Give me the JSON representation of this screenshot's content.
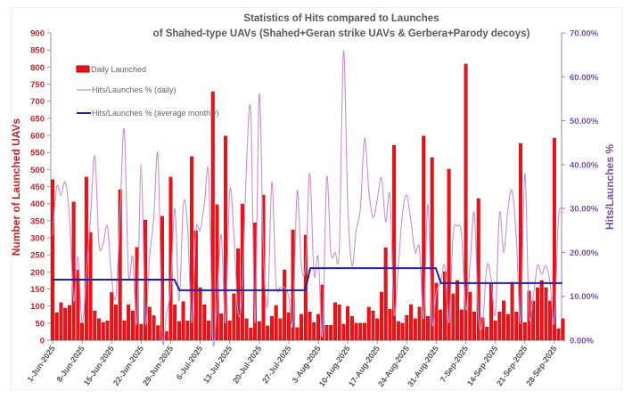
{
  "chart_data": {
    "type": "bar",
    "title": [
      "Statistics of Hits compared to Launches",
      "of Shahed-type UAVs (Shahed+Geran strike UAVs & Gerbera+Parody decoys)"
    ],
    "ylabel": "Number of Launched UAVs",
    "ylabel_right": "Hits/Launches %",
    "ylim": [
      0,
      900
    ],
    "ylim_right": [
      0,
      70
    ],
    "y_ticks": [
      "0",
      "50",
      "100",
      "150",
      "200",
      "250",
      "300",
      "350",
      "400",
      "450",
      "500",
      "550",
      "600",
      "650",
      "700",
      "750",
      "800",
      "850",
      "900"
    ],
    "y_ticks_right": [
      "0.00%",
      "10.00%",
      "20.00%",
      "30.00%",
      "40.00%",
      "50.00%",
      "60.00%",
      "70.00%"
    ],
    "x_start": "1-Jun-2025",
    "x_ticks": [
      "1-Jun-2025",
      "8-Jun-2025",
      "15-Jun-2025",
      "22-Jun-2025",
      "29-Jun-2025",
      "6-Jul-2025",
      "13-Jul-2025",
      "20-Jul-2025",
      "27-Jul-2025",
      "3-Aug-2025",
      "10-Aug-2025",
      "17-Aug-2025",
      "24-Aug-2025",
      "31-Aug-2025",
      "7-Sep-2025",
      "14-Sep-2025",
      "21-Sep-2025",
      "28-Sep-2025"
    ],
    "legend": [
      "Daily Launched",
      "Hits/Launches % (daily)",
      "Hits/Launches % (average monthly)"
    ],
    "legend_position": "top-left",
    "series": [
      {
        "name": "Daily Launched",
        "type": "bar",
        "axis": "left",
        "values": [
          470,
          81,
          110,
          94,
          102,
          405,
          206,
          50,
          478,
          316,
          86,
          63,
          52,
          57,
          140,
          104,
          441,
          57,
          104,
          86,
          272,
          47,
          352,
          97,
          72,
          43,
          363,
          26,
          478,
          104,
          55,
          113,
          57,
          538,
          321,
          154,
          104,
          57,
          728,
          397,
          78,
          598,
          57,
          136,
          268,
          399,
          63,
          36,
          344,
          55,
          425,
          42,
          70,
          102,
          63,
          206,
          81,
          323,
          37,
          76,
          308,
          83,
          52,
          76,
          162,
          44,
          44,
          110,
          104,
          47,
          99,
          70,
          50,
          50,
          50,
          97,
          86,
          63,
          141,
          271,
          91,
          571,
          55,
          50,
          73,
          104,
          63,
          97,
          598,
          70,
          535,
          167,
          89,
          201,
          501,
          136,
          175,
          89,
          809,
          141,
          83,
          415,
          66,
          39,
          167,
          57,
          83,
          115,
          76,
          170,
          83,
          576,
          52,
          144,
          115,
          154,
          175,
          154,
          115,
          592,
          34,
          63
        ]
      },
      {
        "name": "Hits/Launches % (daily)",
        "type": "line",
        "axis": "right",
        "values": [
          24,
          35,
          33,
          36,
          28,
          9,
          19,
          4,
          15,
          28,
          42,
          22,
          22,
          26,
          14,
          10,
          29,
          48,
          15,
          19,
          4,
          40,
          4,
          19,
          28,
          42,
          1,
          6,
          12,
          30,
          9,
          31,
          26,
          4,
          25,
          25,
          31,
          38,
          0,
          9,
          24,
          4,
          34,
          24,
          6,
          12,
          40,
          52,
          4,
          56,
          20,
          8,
          36,
          13,
          12,
          12,
          10,
          4,
          34,
          17,
          17,
          38,
          15,
          19,
          1,
          37,
          20,
          20,
          21,
          66,
          31,
          17,
          25,
          30,
          46,
          34,
          28,
          32,
          37,
          27,
          33,
          6,
          17,
          29,
          33,
          27,
          20,
          21,
          5,
          31,
          4,
          11,
          13,
          17,
          4,
          24,
          26,
          24,
          7,
          17,
          29,
          5,
          4,
          17,
          14,
          6,
          29,
          20,
          30,
          34,
          23,
          4,
          38,
          6,
          10,
          17,
          15,
          17,
          13,
          4,
          28,
          29
        ]
      },
      {
        "name": "Hits/Launches % (average monthly)",
        "type": "line",
        "axis": "right",
        "months": [
          "Jun",
          "Jul",
          "Aug",
          "Sep"
        ],
        "values": [
          13.8,
          11.4,
          16.4,
          13.0
        ],
        "month_start_day": [
          0,
          30,
          61,
          92
        ],
        "month_days": [
          30,
          31,
          31,
          30
        ]
      }
    ],
    "colors": {
      "bar": "#e8141c",
      "bar_edge": "#b00000",
      "daily_line": "#c98fd0",
      "avg_line": "#1f1fa5",
      "left_axis": "#c0282d",
      "right_axis": "#7a52a8"
    }
  }
}
